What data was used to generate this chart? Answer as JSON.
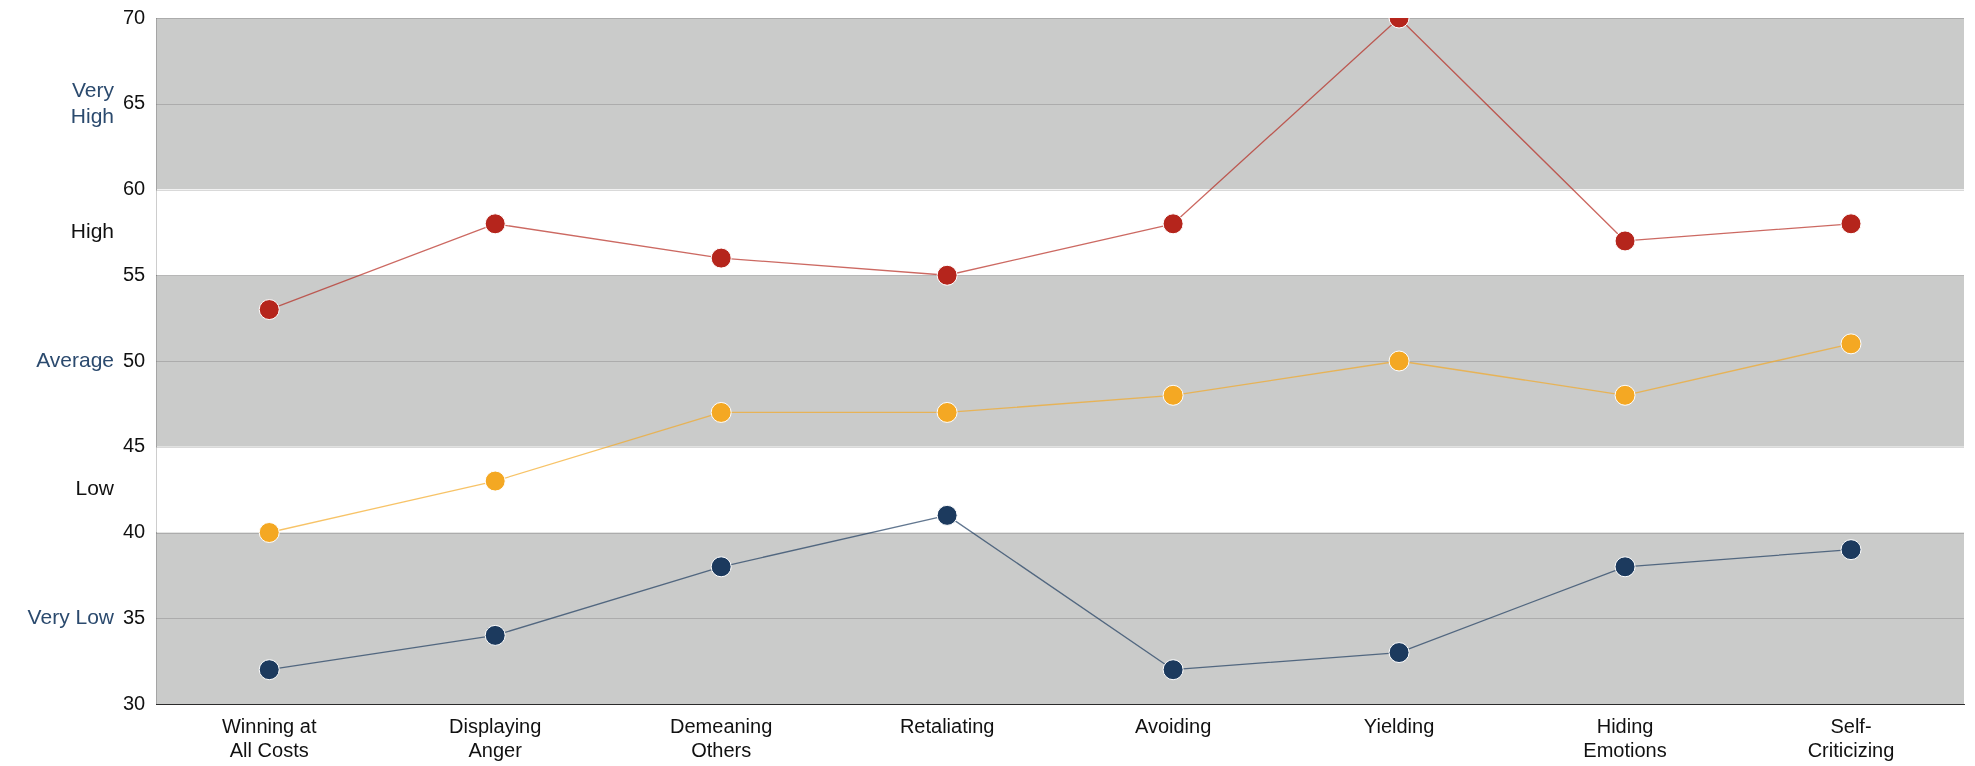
{
  "chart_data": {
    "type": "line",
    "categories": [
      "Winning at All Costs",
      "Displaying Anger",
      "Demeaning Others",
      "Retaliating",
      "Avoiding",
      "Yielding",
      "Hiding Emotions",
      "Self-Criticizing"
    ],
    "series": [
      {
        "color": "#b5251c",
        "values": [
          53,
          58,
          56,
          55,
          58,
          70,
          57,
          58
        ]
      },
      {
        "color": "#f4a823",
        "values": [
          40,
          43,
          47,
          47,
          48,
          50,
          48,
          51
        ]
      },
      {
        "color": "#1c3a5e",
        "values": [
          32,
          34,
          38,
          41,
          32,
          33,
          38,
          39
        ]
      }
    ],
    "ylim": [
      30,
      70
    ],
    "yticks": [
      30,
      35,
      40,
      45,
      50,
      55,
      60,
      65,
      70
    ],
    "bands": [
      {
        "axis": "y",
        "from": 60,
        "to": 70,
        "label": "Very High",
        "color": "#cacbca"
      },
      {
        "axis": "y",
        "from": 55,
        "to": 60,
        "label": "High",
        "color": "#ffffff"
      },
      {
        "axis": "y",
        "from": 45,
        "to": 55,
        "label": "Average",
        "color": "#cacbca"
      },
      {
        "axis": "y",
        "from": 40,
        "to": 45,
        "label": "Low",
        "color": "#ffffff"
      },
      {
        "axis": "y",
        "from": 30,
        "to": 40,
        "label": "Very Low",
        "color": "#cacbca"
      }
    ],
    "grid": "y",
    "legend": false,
    "marker": "circle",
    "line_style": "solid"
  }
}
